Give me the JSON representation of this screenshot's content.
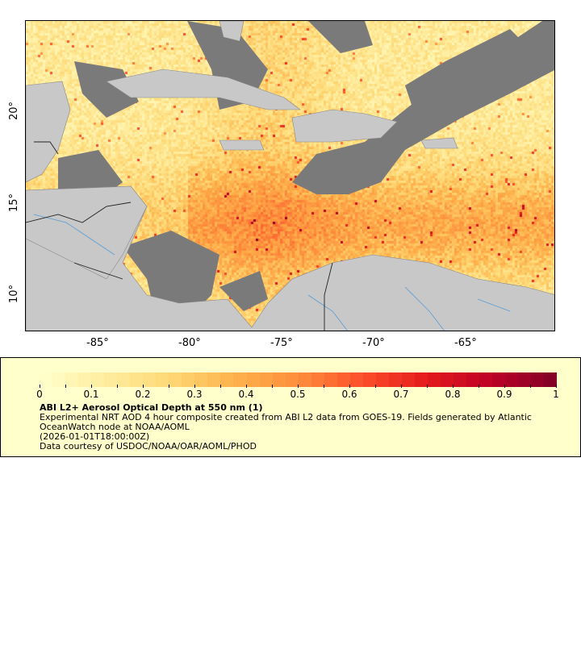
{
  "map": {
    "lon_range": [
      -89,
      -60
    ],
    "lat_range": [
      8,
      25
    ],
    "x_ticks": [
      "-85°",
      "-80°",
      "-75°",
      "-70°",
      "-65°"
    ],
    "y_ticks": [
      "20°",
      "15°",
      "10°"
    ],
    "colors": {
      "land": "#c8c8c8",
      "cloud": "#7a7a7a",
      "rivers": "#5b9bd5",
      "borders": "#000000"
    }
  },
  "legend": {
    "colorbar": {
      "min": 0,
      "max": 1,
      "labels": [
        "0",
        "0.1",
        "0.2",
        "0.3",
        "0.4",
        "0.5",
        "0.6",
        "0.7",
        "0.8",
        "0.9",
        "1"
      ],
      "palette": "YlOrRd",
      "color_low": "#fffbe6",
      "color_high": "#800026"
    },
    "title": "ABI L2+ Aerosol Optical Depth at 550 nm (1)",
    "description": "Experimental NRT AOD 4 hour composite created from ABI L2 data from GOES-19. Fields generated by Atlantic OceanWatch node at NOAA/AOML",
    "time": "(2026-01-01T18:00:00Z)",
    "credit": "Data courtesy of USDOC/NOAA/OAR/AOML/PHOD"
  }
}
